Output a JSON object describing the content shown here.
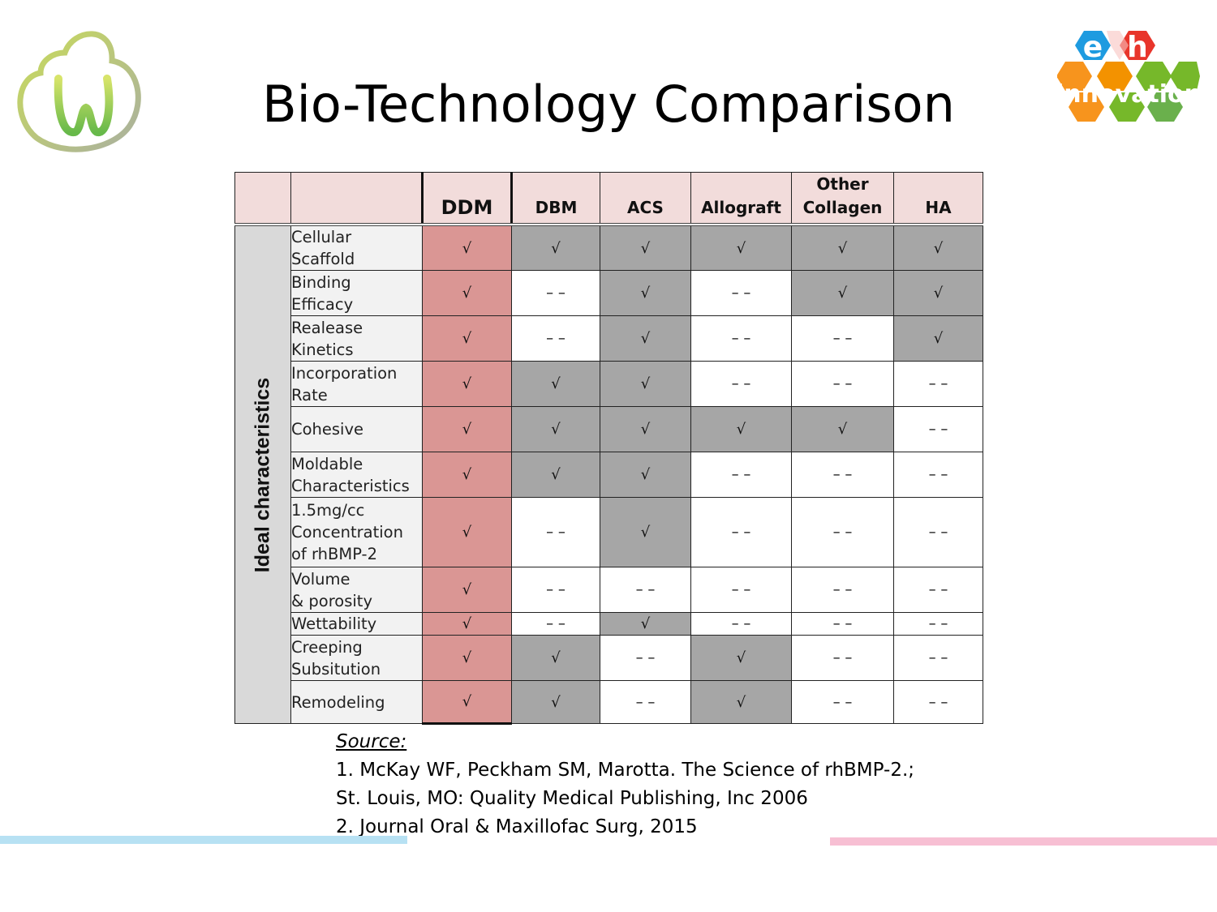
{
  "title": "Bio-Technology Comparison",
  "logos": {
    "left": {
      "icon": "tooth-cloud-logo"
    },
    "right": {
      "icon": "eh-innovation-logo",
      "letters": [
        "e",
        "h"
      ],
      "word": "innovation",
      "colors": [
        "#1e9be0",
        "#e8352b",
        "#f39200",
        "#76b82a",
        "#f7941d"
      ]
    }
  },
  "table": {
    "side_label": "Ideal characteristics",
    "columns": [
      "DDM",
      "DBM",
      "ACS",
      "Allograft",
      "Other Collagen",
      "HA"
    ],
    "rows": [
      {
        "label": "Cellular Scaffold",
        "cells": [
          "√",
          "√",
          "√",
          "√",
          "√",
          "√"
        ]
      },
      {
        "label": "Binding Efficacy",
        "cells": [
          "√",
          "– –",
          "√",
          "– –",
          "√",
          "√"
        ]
      },
      {
        "label": "Realease Kinetics",
        "cells": [
          "√",
          "– –",
          "√",
          "– –",
          "– –",
          "√"
        ]
      },
      {
        "label": "Incorporation Rate",
        "cells": [
          "√",
          "√",
          "√",
          "– –",
          "– –",
          "– –"
        ]
      },
      {
        "label": "Cohesive",
        "cells": [
          "√",
          "√",
          "√",
          "√",
          "√",
          "– –"
        ]
      },
      {
        "label": "Moldable Characteristics",
        "cells": [
          "√",
          "√",
          "√",
          "– –",
          "– –",
          "– –"
        ]
      },
      {
        "label": "1.5mg/cc Concentration of rhBMP-2",
        "cells": [
          "√",
          "– –",
          "√",
          "– –",
          "– –",
          "– –"
        ]
      },
      {
        "label": "Volume & porosity",
        "cells": [
          "√",
          "– –",
          "– –",
          "– –",
          "– –",
          "– –"
        ]
      },
      {
        "label": "Wettability",
        "cells": [
          "√",
          "– –",
          "√",
          "– –",
          "– –",
          "– –"
        ]
      },
      {
        "label": "Creeping Subsitution",
        "cells": [
          "√",
          "√",
          "– –",
          "√",
          "– –",
          "– –"
        ]
      },
      {
        "label": "Remodeling",
        "cells": [
          "√",
          "√",
          "– –",
          "√",
          "– –",
          "– –"
        ]
      }
    ]
  },
  "source": {
    "label": "Source:",
    "lines": [
      "1. McKay WF, Peckham SM, Marotta. The Science of rhBMP-2.;",
      "St. Louis, MO: Quality Medical Publishing, Inc 2006",
      "2. Journal Oral & Maxillofac Surg, 2015"
    ]
  },
  "colors": {
    "ddm": "#da9694",
    "checked": "#a6a6a6",
    "header": "#f2dcdb",
    "side": "#d9d9d9"
  }
}
